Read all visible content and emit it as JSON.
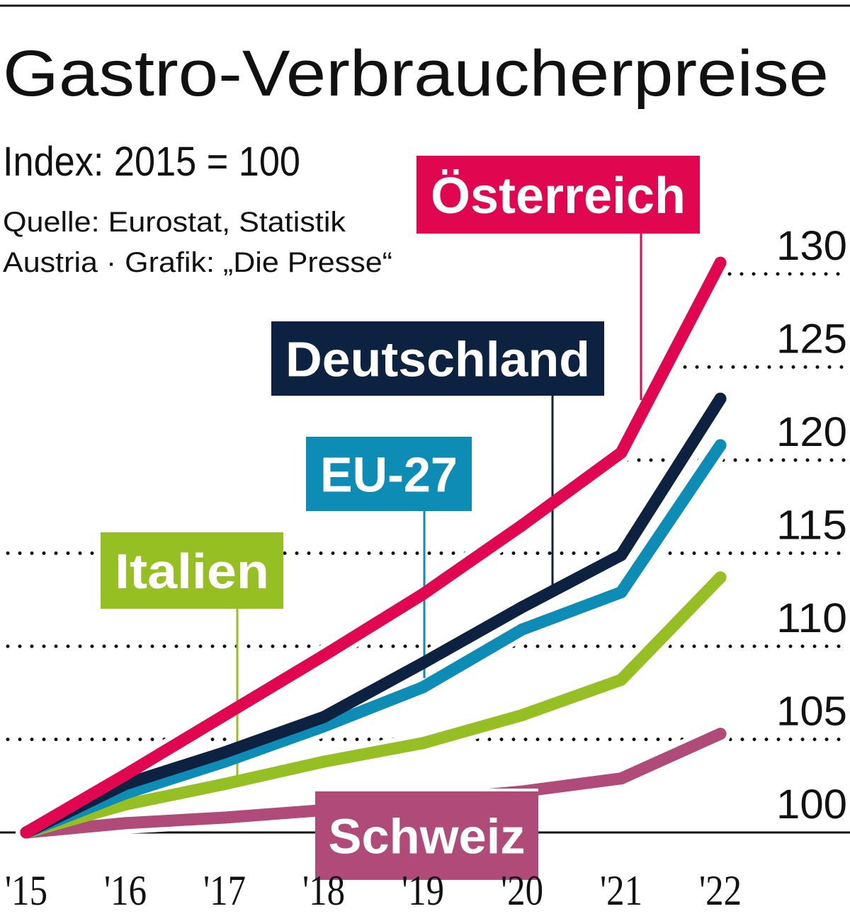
{
  "chart_data": {
    "type": "line",
    "title": "Gastro-Verbraucherpreise",
    "subtitle": "Index: 2015 = 100",
    "source_lines": [
      "Quelle: Eurostat, Statistik",
      "Austria · Grafik: „Die Presse“"
    ],
    "xlabel": "",
    "ylabel": "",
    "x": [
      "'15",
      "'16",
      "'17",
      "'18",
      "'19",
      "'20",
      "'21",
      "'22"
    ],
    "ylim": [
      100,
      130
    ],
    "yticks": [
      100,
      105,
      110,
      115,
      120,
      125,
      130
    ],
    "grid": "dotted horizontal",
    "legend": "direct labels",
    "series": [
      {
        "name": "Österreich",
        "color": "#e0064f",
        "values": [
          100,
          103.1,
          106.3,
          109.5,
          112.8,
          116.5,
          120.4,
          130.6
        ]
      },
      {
        "name": "Deutschland",
        "color": "#0d2240",
        "values": [
          100,
          102.6,
          104.3,
          106.2,
          109.1,
          112.1,
          114.9,
          123.3
        ]
      },
      {
        "name": "EU-27",
        "color": "#0d8db5",
        "values": [
          100,
          102.1,
          103.8,
          105.7,
          107.8,
          110.9,
          112.9,
          120.8
        ]
      },
      {
        "name": "Italien",
        "color": "#95bf23",
        "values": [
          100,
          101.5,
          102.6,
          103.8,
          104.8,
          106.3,
          108.2,
          113.7
        ]
      },
      {
        "name": "Schweiz",
        "color": "#b04a78",
        "values": [
          100,
          100.5,
          100.8,
          101.2,
          101.7,
          102.2,
          102.9,
          105.3
        ]
      }
    ]
  }
}
